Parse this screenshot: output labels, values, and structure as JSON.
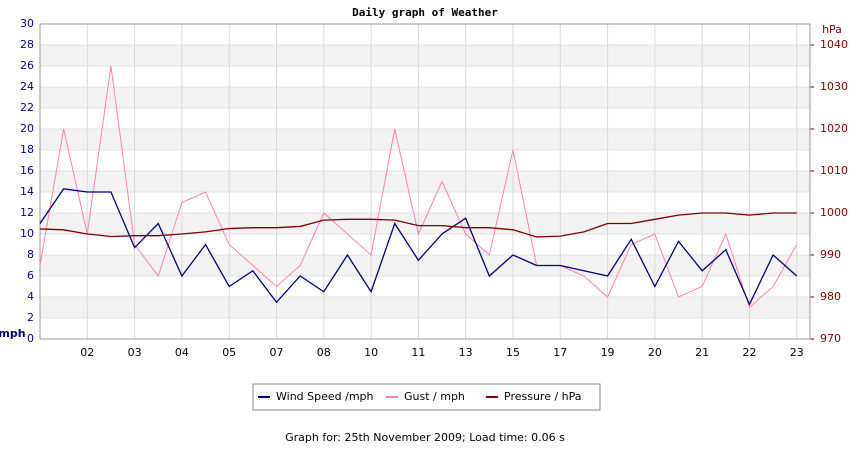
{
  "chart_data": {
    "type": "line",
    "title": "Daily graph of Weather",
    "ylabel": "mph",
    "y2label": "hPa",
    "x": [
      0,
      0.5,
      1,
      1.5,
      2,
      2.5,
      3,
      3.5,
      4,
      4.5,
      5,
      5.5,
      6,
      6.5,
      7,
      7.5,
      8,
      8.5,
      9,
      9.5,
      10,
      10.5,
      11,
      11.5,
      12,
      12.5,
      13,
      13.5,
      14,
      14.5,
      15,
      15.5,
      16
    ],
    "xlim": [
      0,
      16.28
    ],
    "xticks": [
      {
        "value": 1,
        "label": "02"
      },
      {
        "value": 2,
        "label": "03"
      },
      {
        "value": 3,
        "label": "04"
      },
      {
        "value": 4,
        "label": "05"
      },
      {
        "value": 5,
        "label": "07"
      },
      {
        "value": 6,
        "label": "08"
      },
      {
        "value": 7,
        "label": "10"
      },
      {
        "value": 8,
        "label": "11"
      },
      {
        "value": 9,
        "label": "13"
      },
      {
        "value": 10,
        "label": "15"
      },
      {
        "value": 11,
        "label": "17"
      },
      {
        "value": 12,
        "label": "19"
      },
      {
        "value": 13,
        "label": "20"
      },
      {
        "value": 14,
        "label": "21"
      },
      {
        "value": 15,
        "label": "22"
      },
      {
        "value": 16,
        "label": "23"
      }
    ],
    "ylim": [
      0,
      30
    ],
    "yticks": [
      0,
      2,
      4,
      6,
      8,
      10,
      12,
      14,
      16,
      18,
      20,
      22,
      24,
      26,
      28,
      30
    ],
    "y2lim": [
      970,
      1045
    ],
    "y2ticks": [
      970,
      980,
      990,
      1000,
      1010,
      1020,
      1030,
      1040
    ],
    "grid": true,
    "series": [
      {
        "name": "Wind Speed /mph",
        "color": "#000080",
        "values": [
          11,
          14.3,
          14,
          14,
          8.7,
          11,
          6,
          9,
          5,
          6.5,
          3.5,
          6,
          4.5,
          8,
          4.5,
          11,
          7.5,
          10,
          11.5,
          6,
          8,
          7,
          7,
          6.5,
          6,
          9.5,
          5,
          9.3,
          6.5,
          8.5,
          3.3,
          8,
          6
        ]
      },
      {
        "name": "Gust / mph",
        "color": "#ff80b0",
        "values": [
          7,
          20,
          10,
          26,
          9,
          6,
          13,
          14,
          9,
          7,
          5,
          7,
          12,
          10,
          8,
          20,
          10,
          15,
          10,
          8,
          18,
          7,
          7,
          6,
          4,
          9,
          10,
          4,
          5,
          10,
          3,
          5,
          9
        ]
      },
      {
        "name": "Pressure / hPa",
        "color": "#800000",
        "axis": "y2",
        "values": [
          996.2,
          996,
          995,
          994.4,
          994.6,
          994.6,
          995,
          995.5,
          996.3,
          996.5,
          996.5,
          996.8,
          998.3,
          998.5,
          998.5,
          998.3,
          997,
          997,
          996.5,
          996.5,
          996,
          994.3,
          994.5,
          995.5,
          997.5,
          997.5,
          998.5,
          999.5,
          1000,
          1000,
          999.5,
          1000,
          1000
        ]
      }
    ],
    "footer": "Graph for: 25th November 2009; Load time: 0.06 s"
  }
}
